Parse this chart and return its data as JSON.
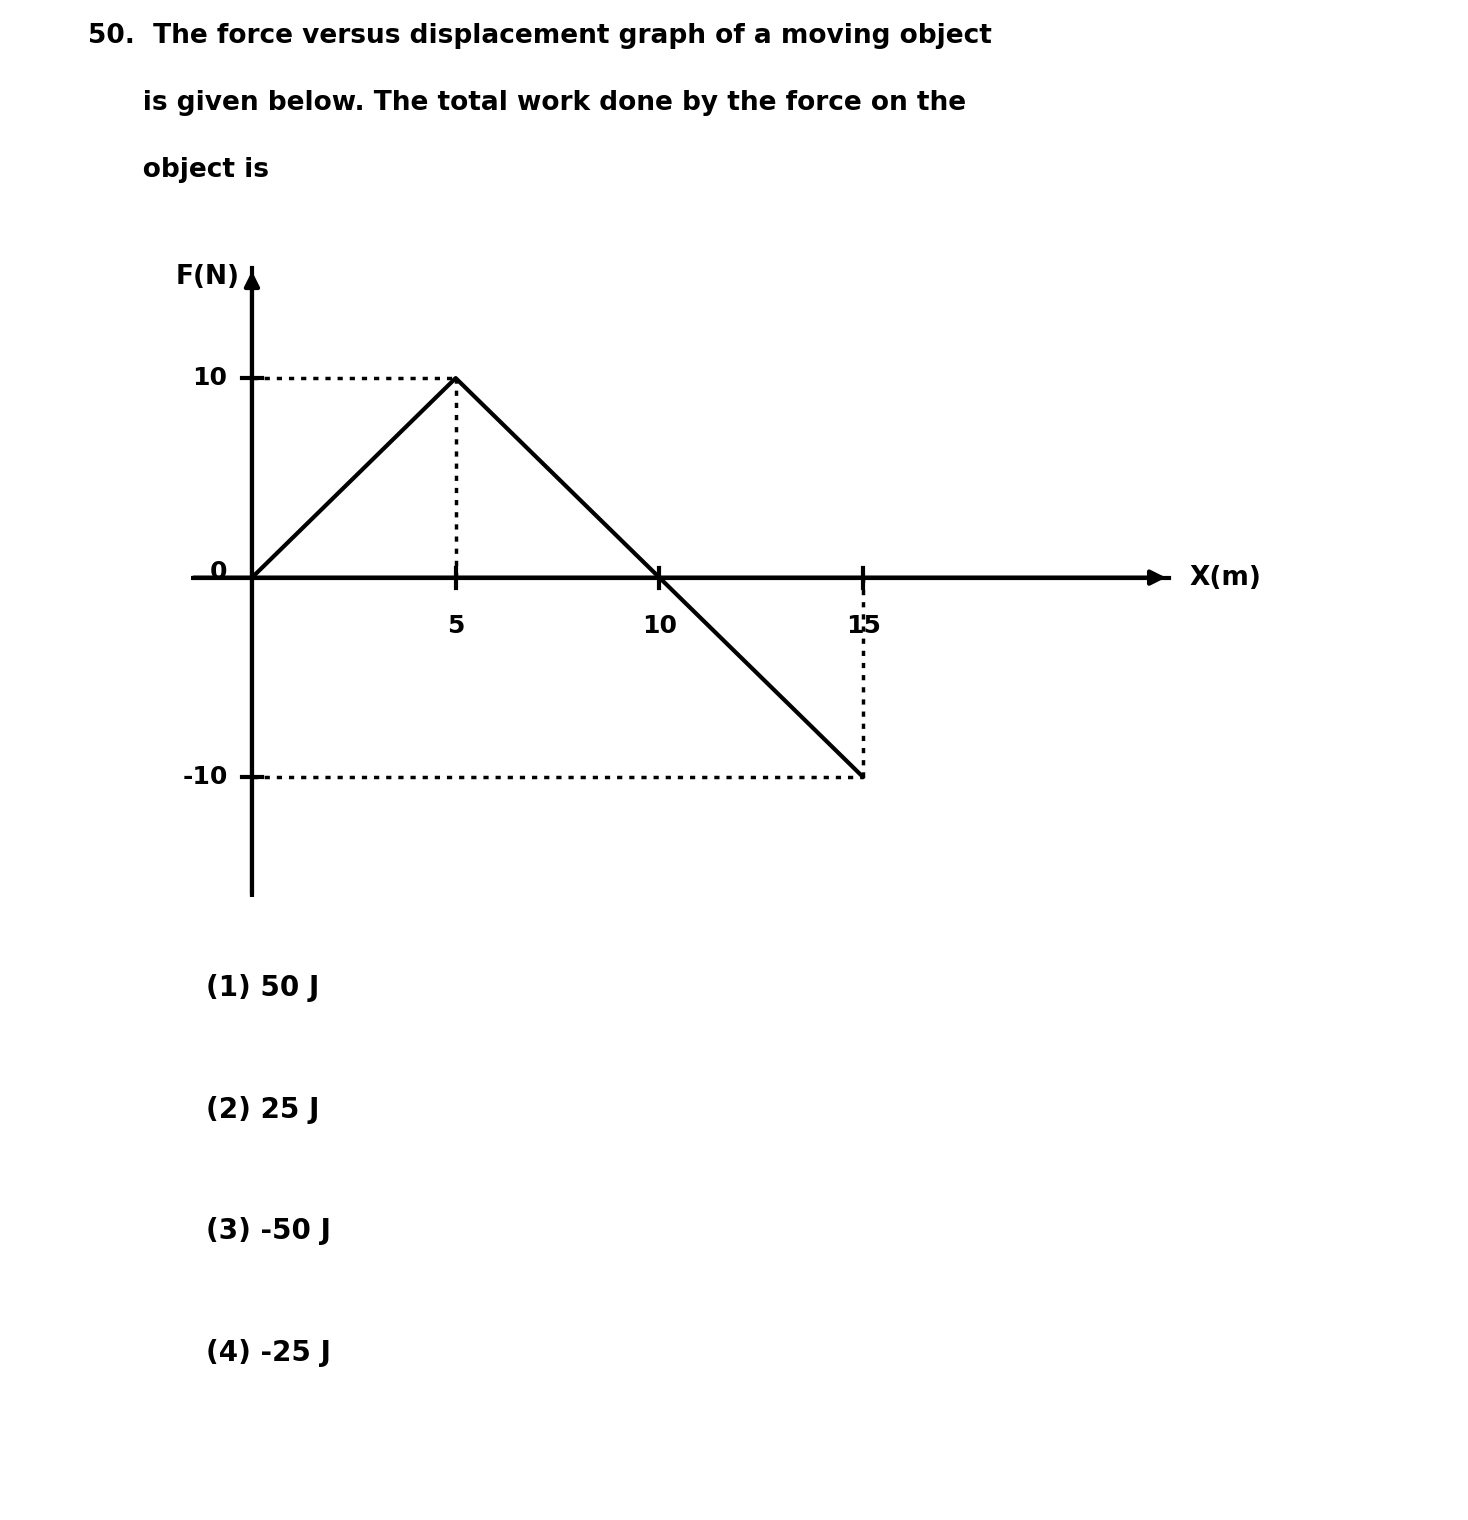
{
  "title_line1": "50.  The force versus displacement graph of a moving object",
  "title_line2": "      is given below. The total work done by the force on the",
  "title_line3": "      object is",
  "title_fontsize": 19,
  "title_fontweight": "bold",
  "graph_line_x": [
    0,
    5,
    10,
    15
  ],
  "graph_line_y": [
    0,
    10,
    0,
    -10
  ],
  "dotted_lines": [
    {
      "x": [
        0,
        5
      ],
      "y": [
        10,
        10
      ]
    },
    {
      "x": [
        5,
        5
      ],
      "y": [
        10,
        0
      ]
    },
    {
      "x": [
        0,
        15
      ],
      "y": [
        -10,
        -10
      ]
    },
    {
      "x": [
        15,
        15
      ],
      "y": [
        -10,
        0
      ]
    }
  ],
  "xlabel": "X(m)",
  "ylabel": "F(N)",
  "xtick_vals": [
    5,
    10,
    15
  ],
  "xtick_labels": [
    "5",
    "10",
    "15"
  ],
  "ytick_vals": [
    10,
    -10
  ],
  "ytick_labels": [
    "10",
    "-10"
  ],
  "xlim": [
    -1.5,
    23
  ],
  "ylim": [
    -16,
    16
  ],
  "options": [
    "(1) 50 J",
    "(2) 25 J",
    "(3) -50 J",
    "(4) -25 J"
  ],
  "options_fontsize": 20,
  "options_fontweight": "bold",
  "line_color": "#000000",
  "line_width": 3.0,
  "dotted_color": "#000000",
  "dotted_style": ":",
  "dotted_linewidth": 2.5,
  "bg_color": "#ffffff",
  "axis_linewidth": 3.0,
  "tick_fontsize": 18,
  "label_fontsize": 19,
  "zero_label": "0"
}
